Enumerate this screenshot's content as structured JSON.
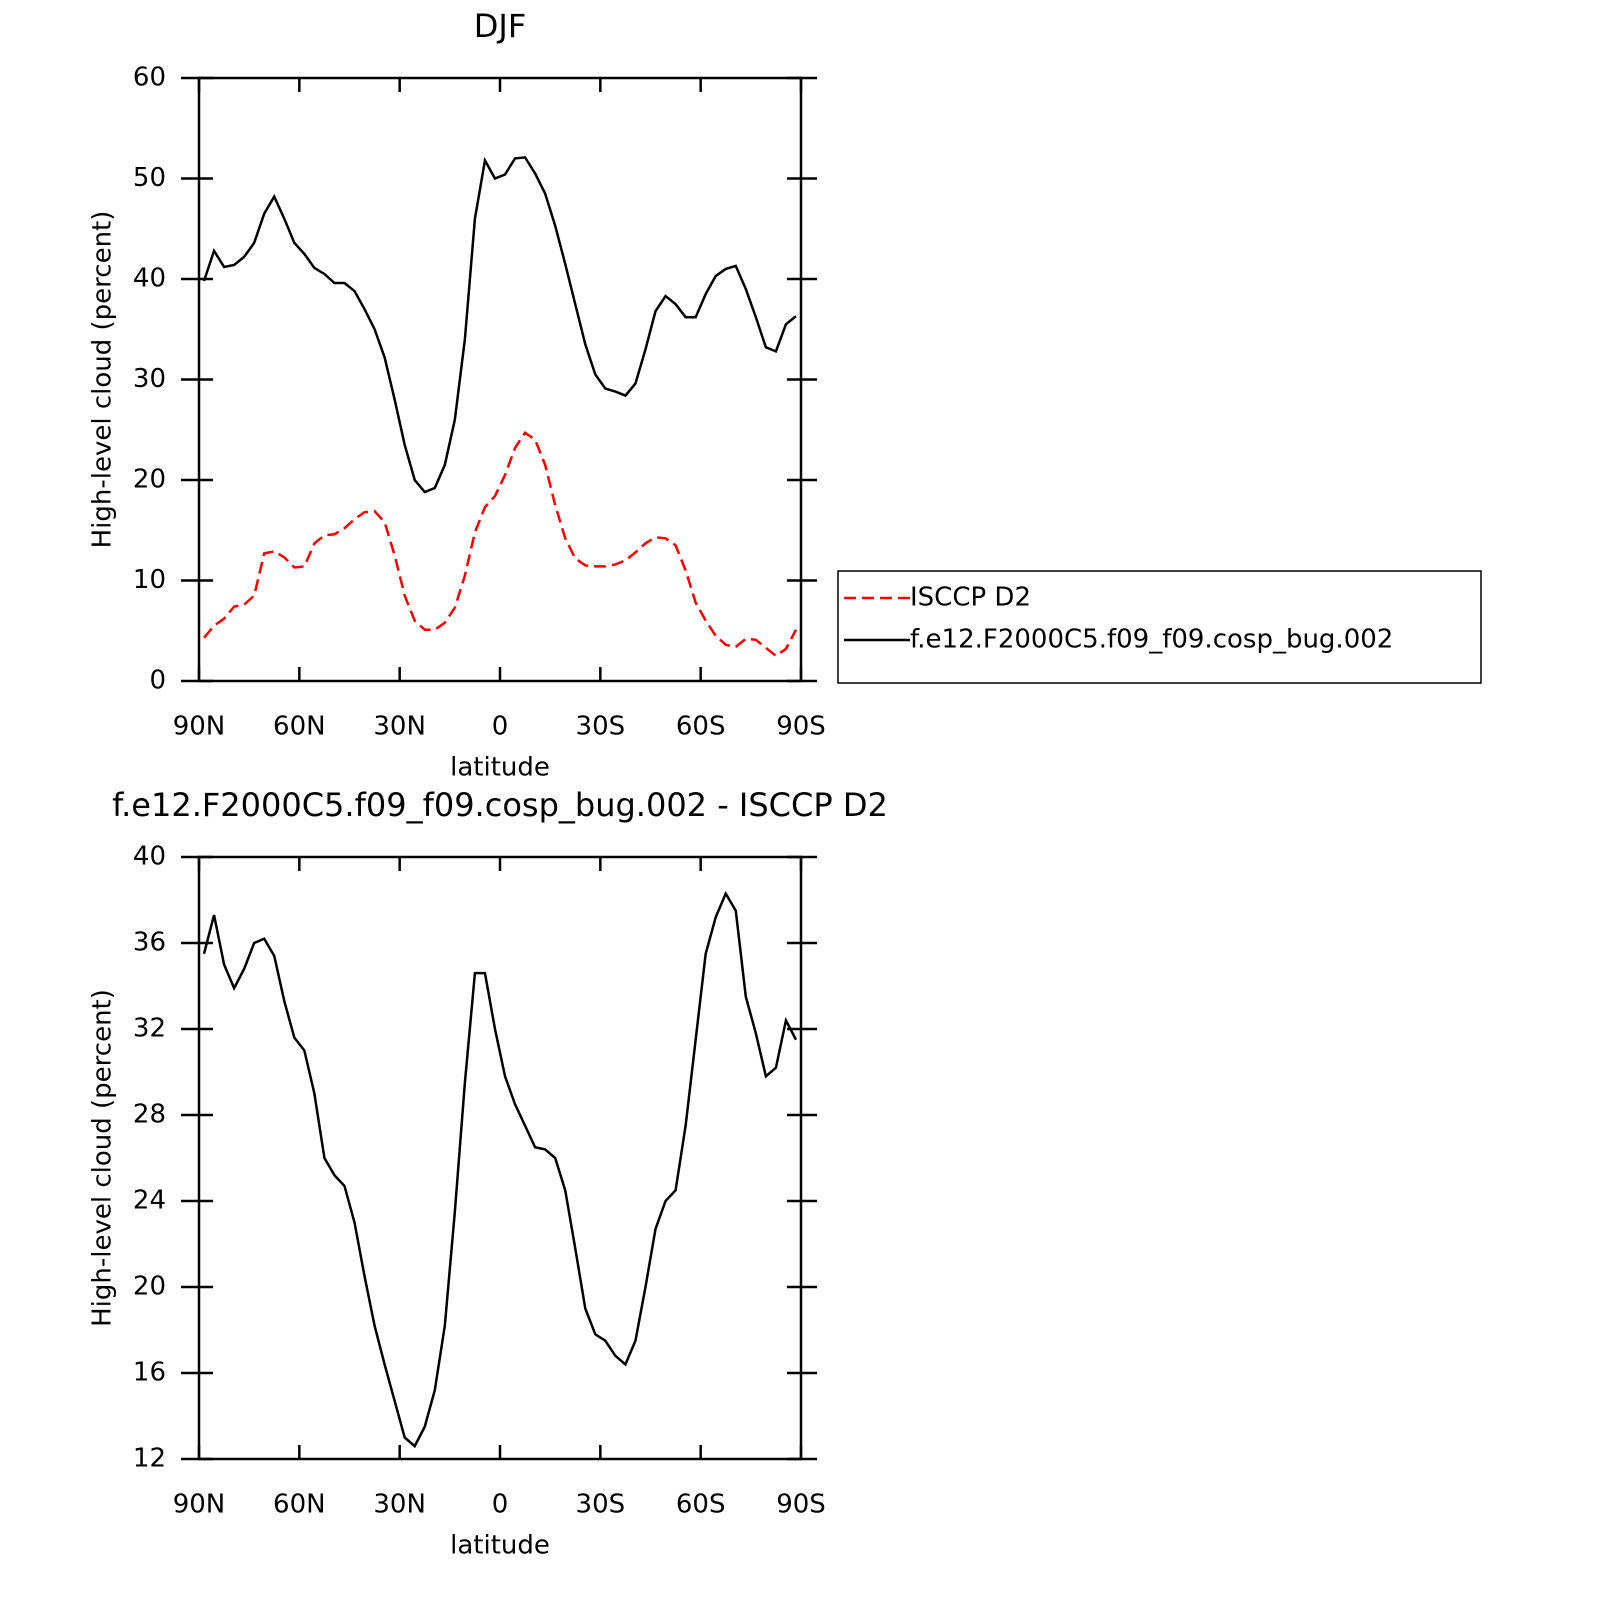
{
  "chart_data": [
    {
      "type": "line",
      "title": "DJF",
      "x_label": "latitude",
      "y_label": "High-level cloud (percent)",
      "x": [
        88.5,
        85.5,
        82.5,
        79.5,
        76.5,
        73.5,
        70.5,
        67.5,
        64.5,
        61.5,
        58.5,
        55.5,
        52.5,
        49.5,
        46.5,
        43.5,
        40.5,
        37.5,
        34.5,
        31.5,
        28.5,
        25.5,
        22.5,
        19.5,
        16.5,
        13.5,
        10.5,
        7.5,
        4.5,
        1.5,
        -1.5,
        -4.5,
        -7.5,
        -10.5,
        -13.5,
        -16.5,
        -19.5,
        -22.5,
        -25.5,
        -28.5,
        -31.5,
        -34.5,
        -37.5,
        -40.5,
        -43.5,
        -46.5,
        -49.5,
        -52.5,
        -55.5,
        -58.5,
        -61.5,
        -64.5,
        -67.5,
        -70.5,
        -73.5,
        -76.5,
        -79.5,
        -82.5,
        -85.5,
        -88.5
      ],
      "series": [
        {
          "name": "ISCCP D2",
          "color": "#ff0000",
          "style": "dashed",
          "values": [
            4.3,
            5.5,
            6.2,
            7.4,
            7.6,
            8.5,
            12.7,
            12.9,
            12.3,
            11.3,
            11.4,
            13.7,
            14.5,
            14.6,
            15.2,
            16.1,
            16.8,
            16.9,
            15.8,
            12.5,
            8.5,
            6,
            5.1,
            5.1,
            5.8,
            7.3,
            10.5,
            14.8,
            17.3,
            18.4,
            20.5,
            23.2,
            24.7,
            24,
            21.5,
            17.5,
            14.2,
            12.2,
            11.5,
            11.4,
            11.4,
            11.6,
            12,
            12.8,
            13.7,
            14.3,
            14.2,
            13.5,
            11,
            7.8,
            6,
            4.5,
            3.6,
            3.4,
            4.2,
            4.1,
            3.3,
            2.5,
            3.2,
            5.1
          ]
        },
        {
          "name": "f.e12.F2000C5.f09_f09.cosp_bug.002",
          "color": "#000000",
          "style": "solid",
          "values": [
            39.8,
            42.8,
            41.2,
            41.4,
            42.2,
            43.6,
            46.5,
            48.2,
            46,
            43.6,
            42.5,
            41.1,
            40.5,
            39.6,
            39.6,
            38.8,
            37,
            35,
            32.2,
            28,
            23.5,
            20,
            18.8,
            19.2,
            21.5,
            26,
            34,
            46,
            51.8,
            50,
            50.4,
            52,
            52.1,
            50.5,
            48.5,
            45.3,
            41.5,
            37.5,
            33.5,
            30.5,
            29.1,
            28.8,
            28.4,
            29.6,
            33,
            36.8,
            38.3,
            37.5,
            36.2,
            36.2,
            38.5,
            40.3,
            41,
            41.3,
            39,
            36.2,
            33.2,
            32.8,
            35.5,
            36.3
          ]
        }
      ],
      "xlim": [
        90,
        -90
      ],
      "xticks": [
        {
          "value": 90,
          "label": "90N"
        },
        {
          "value": 60,
          "label": "60N"
        },
        {
          "value": 30,
          "label": "30N"
        },
        0,
        {
          "value": -30,
          "label": "30S"
        },
        {
          "value": -60,
          "label": "60S"
        },
        {
          "value": -90,
          "label": "90S"
        }
      ],
      "ylim": [
        0,
        60
      ],
      "yticks": [
        0,
        10,
        20,
        30,
        40,
        50,
        60
      ],
      "legend": "right"
    },
    {
      "type": "line",
      "title": "f.e12.F2000C5.f09_f09.cosp_bug.002 - ISCCP D2",
      "x_label": "latitude",
      "y_label": "High-level cloud (percent)",
      "x": [
        88.5,
        85.5,
        82.5,
        79.5,
        76.5,
        73.5,
        70.5,
        67.5,
        64.5,
        61.5,
        58.5,
        55.5,
        52.5,
        49.5,
        46.5,
        43.5,
        40.5,
        37.5,
        34.5,
        31.5,
        28.5,
        25.5,
        22.5,
        19.5,
        16.5,
        13.5,
        10.5,
        7.5,
        4.5,
        1.5,
        -1.5,
        -4.5,
        -7.5,
        -10.5,
        -13.5,
        -16.5,
        -19.5,
        -22.5,
        -25.5,
        -28.5,
        -31.5,
        -34.5,
        -37.5,
        -40.5,
        -43.5,
        -46.5,
        -49.5,
        -52.5,
        -55.5,
        -58.5,
        -61.5,
        -64.5,
        -67.5,
        -70.5,
        -73.5,
        -76.5,
        -79.5,
        -82.5,
        -85.5,
        -88.5
      ],
      "series": [
        {
          "color": "#000000",
          "style": "solid",
          "values": [
            35.5,
            37.3,
            35,
            33.9,
            34.8,
            36,
            36.2,
            35.4,
            33.3,
            31.6,
            31,
            29,
            26,
            25.2,
            24.7,
            23,
            20.5,
            18.2,
            16.4,
            14.7,
            13,
            12.6,
            13.5,
            15.2,
            18.2,
            23.5,
            29.5,
            34.6,
            34.6,
            32,
            29.8,
            28.5,
            27.5,
            26.5,
            26.4,
            26,
            24.5,
            21.8,
            19,
            17.8,
            17.5,
            16.8,
            16.4,
            17.5,
            20,
            22.7,
            24,
            24.5,
            27.5,
            31.5,
            35.5,
            37.2,
            38.3,
            37.5,
            33.5,
            31.8,
            29.8,
            30.2,
            32.4,
            31.5
          ]
        }
      ],
      "xlim": [
        90,
        -90
      ],
      "xticks": [
        {
          "value": 90,
          "label": "90N"
        },
        {
          "value": 60,
          "label": "60N"
        },
        {
          "value": 30,
          "label": "30N"
        },
        0,
        {
          "value": -30,
          "label": "30S"
        },
        {
          "value": -60,
          "label": "60S"
        },
        {
          "value": -90,
          "label": "90S"
        }
      ],
      "ylim": [
        12,
        40
      ],
      "yticks": [
        12,
        16,
        20,
        24,
        28,
        32,
        36,
        40
      ]
    }
  ]
}
